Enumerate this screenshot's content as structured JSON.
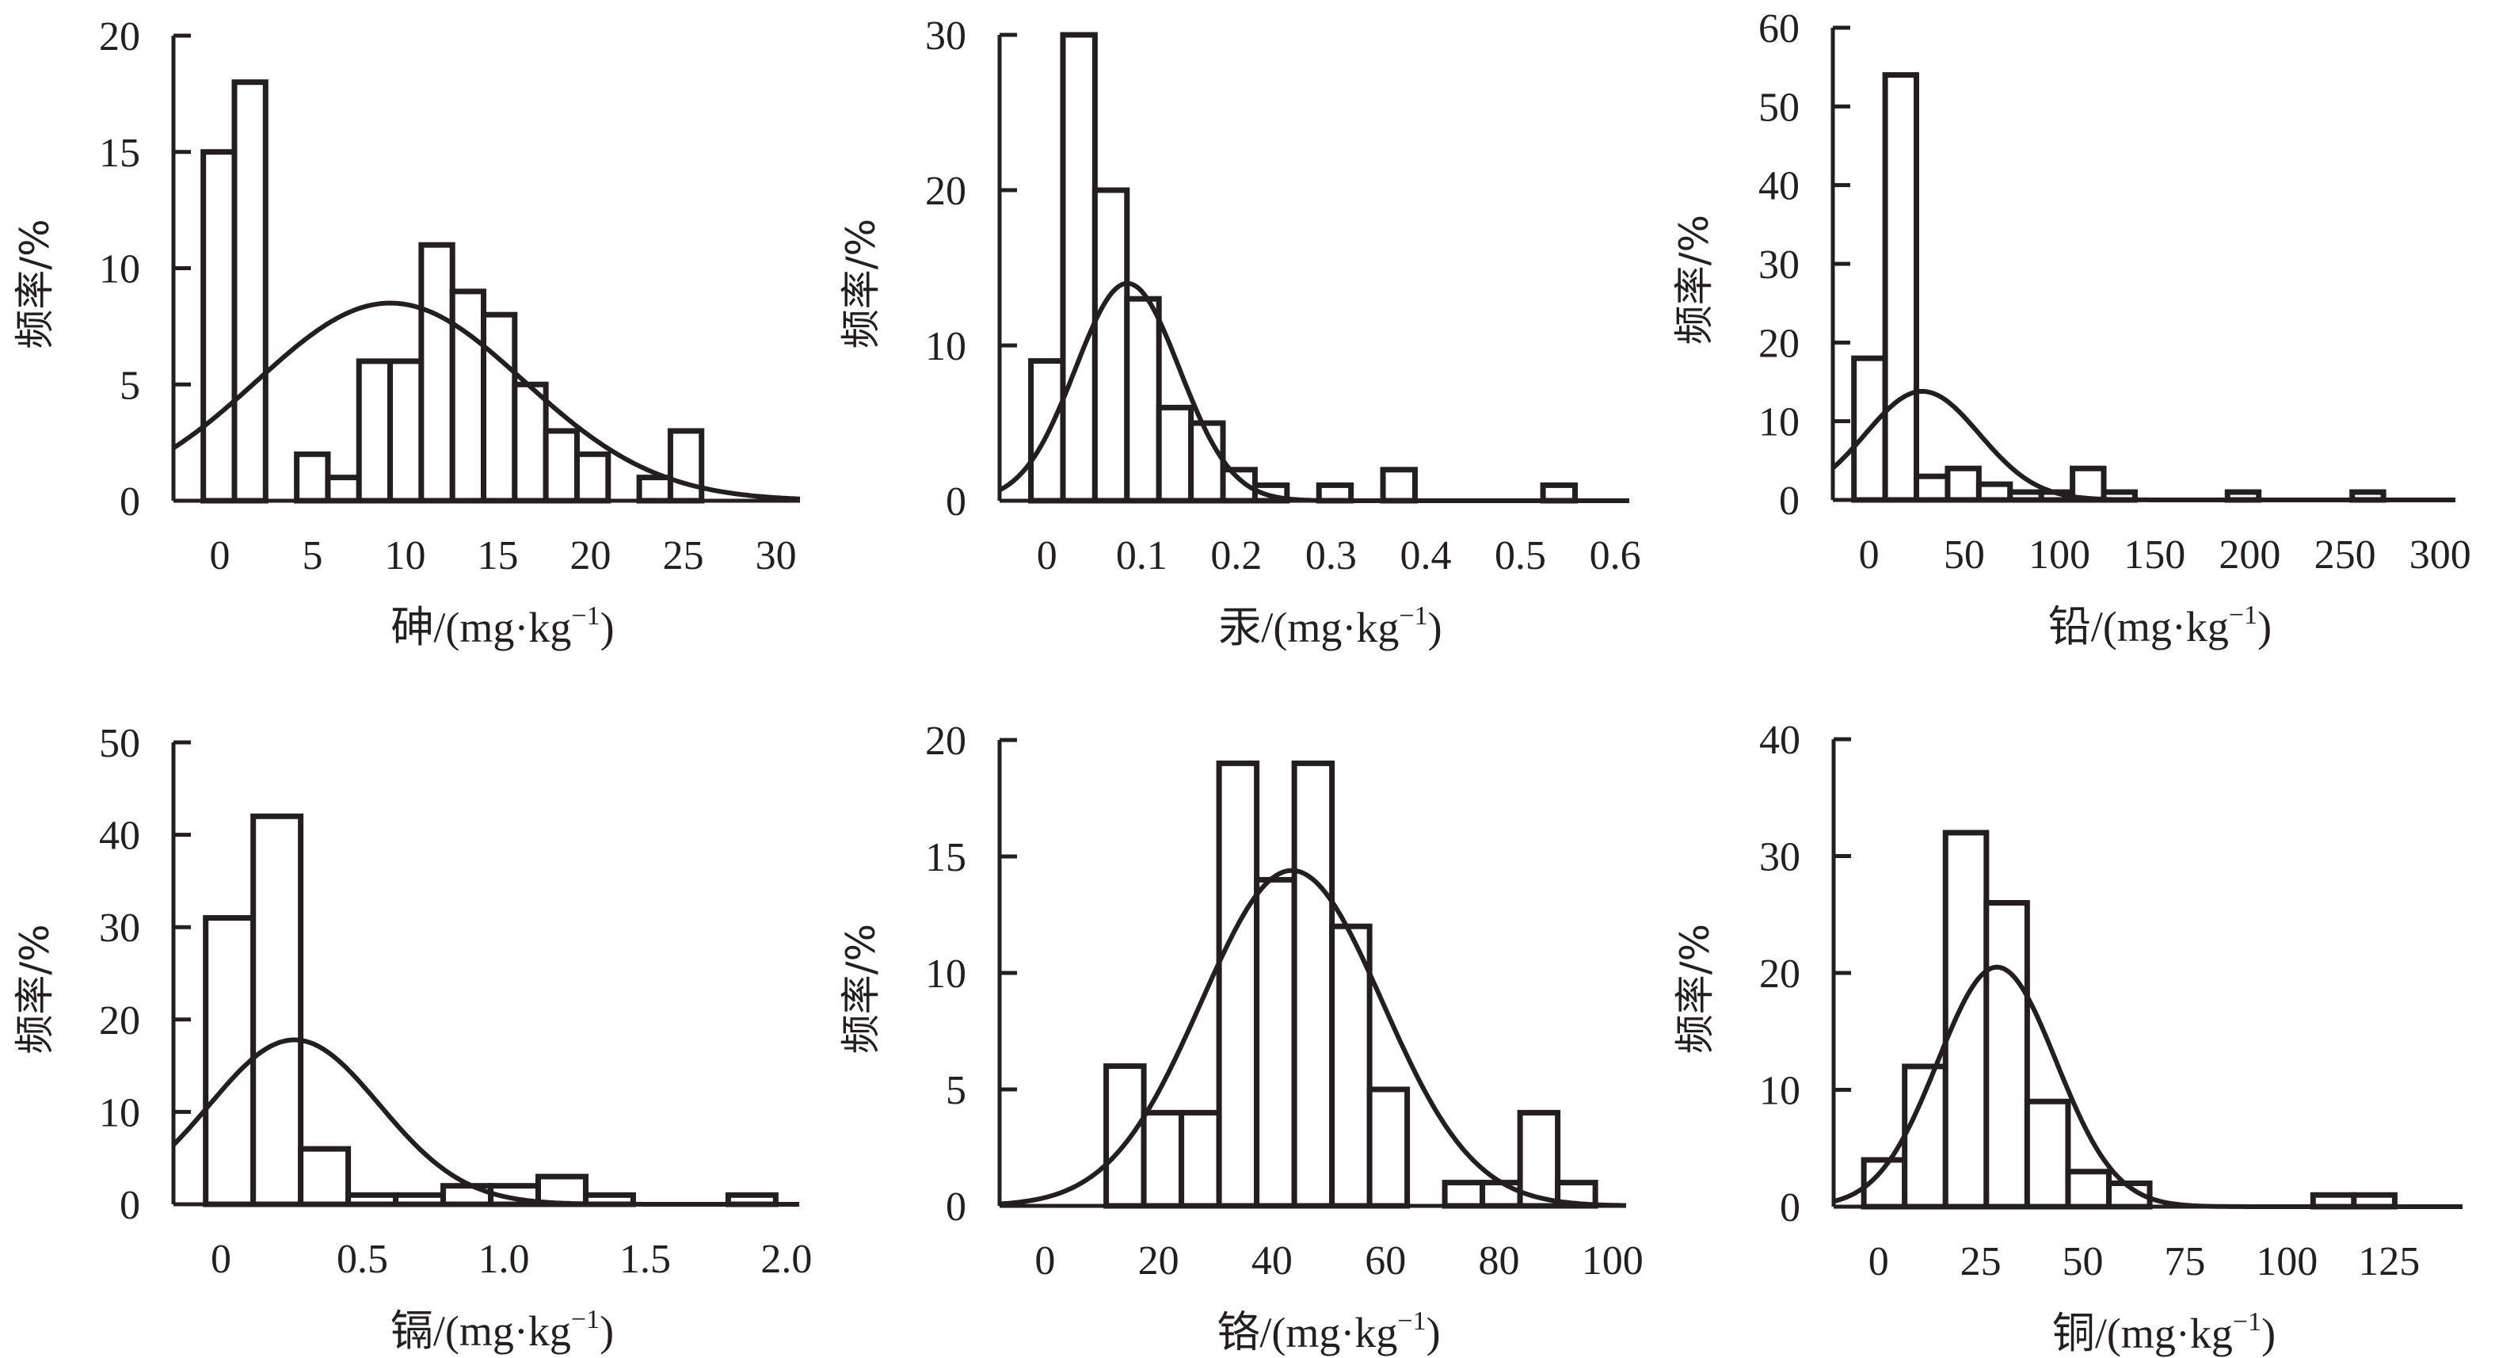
{
  "figure": {
    "y_axis_label": "频率/%",
    "x_axis_unit": "/(mg·kg",
    "x_axis_unit_exp": "−1",
    "x_axis_unit_close": ")"
  },
  "chart_data": [
    {
      "type": "bar",
      "id": "arsenic",
      "element": "砷",
      "title": "",
      "xlabel": "砷/(mg·kg⁻¹)",
      "ylabel": "频率/%",
      "xlim": [
        -2.5,
        31.3
      ],
      "ylim": [
        0,
        20
      ],
      "x_ticks": [
        0,
        5,
        10,
        15,
        20,
        25,
        30
      ],
      "x_tick_labels": [
        "0",
        "5",
        "10",
        "15",
        "20",
        "25",
        "30"
      ],
      "y_ticks": [
        0,
        5,
        10,
        15,
        20
      ],
      "y_tick_labels": [
        "0",
        "5",
        "10",
        "15",
        "20"
      ],
      "bin_width": 1.68,
      "bins": [
        {
          "x": -0.05,
          "value": 15
        },
        {
          "x": 1.63,
          "value": 18
        },
        {
          "x": 3.31,
          "value": 0
        },
        {
          "x": 4.99,
          "value": 2
        },
        {
          "x": 6.67,
          "value": 1
        },
        {
          "x": 8.35,
          "value": 6
        },
        {
          "x": 10.03,
          "value": 6
        },
        {
          "x": 11.71,
          "value": 11
        },
        {
          "x": 13.39,
          "value": 9
        },
        {
          "x": 15.07,
          "value": 8
        },
        {
          "x": 16.75,
          "value": 5
        },
        {
          "x": 18.43,
          "value": 3
        },
        {
          "x": 20.11,
          "value": 2
        },
        {
          "x": 21.79,
          "value": 0
        },
        {
          "x": 23.47,
          "value": 1
        },
        {
          "x": 25.15,
          "value": 3
        }
      ],
      "normal_fit": {
        "mean": 9.2,
        "sd": 7.2,
        "peak": 8.5
      }
    },
    {
      "type": "bar",
      "id": "mercury",
      "element": "汞",
      "title": "",
      "xlabel": "汞/(mg·kg⁻¹)",
      "ylabel": "频率/%",
      "xlim": [
        -0.05,
        0.615
      ],
      "ylim": [
        0,
        30
      ],
      "x_ticks": [
        0,
        0.1,
        0.2,
        0.3,
        0.4,
        0.5,
        0.6
      ],
      "x_tick_labels": [
        "0",
        "0.1",
        "0.2",
        "0.3",
        "0.4",
        "0.5",
        "0.6"
      ],
      "y_ticks": [
        0,
        10,
        20,
        30
      ],
      "y_tick_labels": [
        "0",
        "10",
        "20",
        "30"
      ],
      "bin_width": 0.0338,
      "bins": [
        {
          "x": 0.0,
          "value": 9
        },
        {
          "x": 0.0338,
          "value": 30
        },
        {
          "x": 0.0676,
          "value": 20
        },
        {
          "x": 0.1014,
          "value": 13
        },
        {
          "x": 0.1352,
          "value": 6
        },
        {
          "x": 0.169,
          "value": 5
        },
        {
          "x": 0.2028,
          "value": 2
        },
        {
          "x": 0.2366,
          "value": 1
        },
        {
          "x": 0.2704,
          "value": 0
        },
        {
          "x": 0.3042,
          "value": 1
        },
        {
          "x": 0.338,
          "value": 0
        },
        {
          "x": 0.3718,
          "value": 2
        },
        {
          "x": 0.5408,
          "value": 1
        }
      ],
      "normal_fit": {
        "mean": 0.085,
        "sd": 0.055,
        "peak": 14
      }
    },
    {
      "type": "bar",
      "id": "lead",
      "element": "铅",
      "title": "",
      "xlabel": "铅/(mg·kg⁻¹)",
      "ylabel": "频率/%",
      "xlim": [
        -19,
        308
      ],
      "ylim": [
        0,
        60
      ],
      "x_ticks": [
        0,
        50,
        100,
        150,
        200,
        250,
        300
      ],
      "x_tick_labels": [
        "0",
        "50",
        "100",
        "150",
        "200",
        "250",
        "300"
      ],
      "y_ticks": [
        0,
        10,
        20,
        30,
        40,
        50,
        60
      ],
      "y_tick_labels": [
        "0",
        "10",
        "20",
        "30",
        "40",
        "50",
        "60"
      ],
      "bin_width": 16.4,
      "bins": [
        {
          "x": 0.3,
          "value": 18
        },
        {
          "x": 16.7,
          "value": 54
        },
        {
          "x": 33.1,
          "value": 3
        },
        {
          "x": 49.5,
          "value": 4
        },
        {
          "x": 65.9,
          "value": 2
        },
        {
          "x": 82.3,
          "value": 1
        },
        {
          "x": 98.7,
          "value": 1
        },
        {
          "x": 115.1,
          "value": 4
        },
        {
          "x": 131.5,
          "value": 1
        },
        {
          "x": 196.5,
          "value": 1
        },
        {
          "x": 262,
          "value": 1
        }
      ],
      "normal_fit": {
        "mean": 28,
        "sd": 30,
        "peak": 13.8
      }
    },
    {
      "type": "bar",
      "id": "cadmium",
      "element": "镉",
      "title": "",
      "xlabel": "镉/(mg·kg⁻¹)",
      "ylabel": "频率/%",
      "xlim": [
        -0.168,
        2.045
      ],
      "ylim": [
        0,
        50
      ],
      "x_ticks": [
        0,
        0.5,
        1.0,
        1.5,
        2.0
      ],
      "x_tick_labels": [
        "0",
        "0.5",
        "1.0",
        "1.5",
        "2.0"
      ],
      "y_ticks": [
        0,
        10,
        20,
        30,
        40,
        50
      ],
      "y_tick_labels": [
        "0",
        "10",
        "20",
        "30",
        "40",
        "50"
      ],
      "bin_width": 0.168,
      "bins": [
        {
          "x": 0.03,
          "value": 31
        },
        {
          "x": 0.198,
          "value": 42
        },
        {
          "x": 0.366,
          "value": 6
        },
        {
          "x": 0.534,
          "value": 1
        },
        {
          "x": 0.702,
          "value": 1
        },
        {
          "x": 0.87,
          "value": 2
        },
        {
          "x": 1.038,
          "value": 2
        },
        {
          "x": 1.206,
          "value": 3
        },
        {
          "x": 1.374,
          "value": 1
        },
        {
          "x": 1.878,
          "value": 1
        }
      ],
      "normal_fit": {
        "mean": 0.26,
        "sd": 0.3,
        "peak": 17.8
      }
    },
    {
      "type": "bar",
      "id": "chromium",
      "element": "铬",
      "title": "",
      "xlabel": "铬/(mg·kg⁻¹)",
      "ylabel": "频率/%",
      "xlim": [
        -8,
        102.4
      ],
      "ylim": [
        0,
        20
      ],
      "x_ticks": [
        0,
        20,
        40,
        60,
        80,
        100
      ],
      "x_tick_labels": [
        "0",
        "20",
        "40",
        "60",
        "80",
        "100"
      ],
      "y_ticks": [
        0,
        5,
        10,
        15,
        20
      ],
      "y_tick_labels": [
        "0",
        "5",
        "10",
        "15",
        "20"
      ],
      "bin_width": 6.63,
      "bins": [
        {
          "x": 14.1,
          "value": 6
        },
        {
          "x": 20.73,
          "value": 4
        },
        {
          "x": 27.36,
          "value": 4
        },
        {
          "x": 33.99,
          "value": 19
        },
        {
          "x": 40.62,
          "value": 14
        },
        {
          "x": 47.25,
          "value": 19
        },
        {
          "x": 53.88,
          "value": 12
        },
        {
          "x": 60.51,
          "value": 5
        },
        {
          "x": 67.14,
          "value": 0
        },
        {
          "x": 73.77,
          "value": 1
        },
        {
          "x": 80.4,
          "value": 1
        },
        {
          "x": 87.03,
          "value": 4
        },
        {
          "x": 93.66,
          "value": 1
        }
      ],
      "normal_fit": {
        "mean": 43.5,
        "sd": 16,
        "peak": 14.4
      }
    },
    {
      "type": "bar",
      "id": "copper",
      "element": "铜",
      "title": "",
      "xlabel": "铜/(mg·kg⁻¹)",
      "ylabel": "频率/%",
      "xlim": [
        -11,
        143
      ],
      "ylim": [
        0,
        40
      ],
      "x_ticks": [
        0,
        25,
        50,
        75,
        100,
        125
      ],
      "x_tick_labels": [
        "0",
        "25",
        "50",
        "75",
        "100",
        "125"
      ],
      "y_ticks": [
        0,
        10,
        20,
        30,
        40
      ],
      "y_tick_labels": [
        "0",
        "10",
        "20",
        "30",
        "40"
      ],
      "bin_width": 10,
      "bins": [
        {
          "x": 1.4,
          "value": 4
        },
        {
          "x": 11.4,
          "value": 12
        },
        {
          "x": 21.4,
          "value": 32
        },
        {
          "x": 31.4,
          "value": 26
        },
        {
          "x": 41.4,
          "value": 9
        },
        {
          "x": 51.4,
          "value": 3
        },
        {
          "x": 61.4,
          "value": 2
        },
        {
          "x": 111.4,
          "value": 1
        },
        {
          "x": 121.4,
          "value": 1
        }
      ],
      "normal_fit": {
        "mean": 29,
        "sd": 14.5,
        "peak": 20.5
      }
    }
  ]
}
